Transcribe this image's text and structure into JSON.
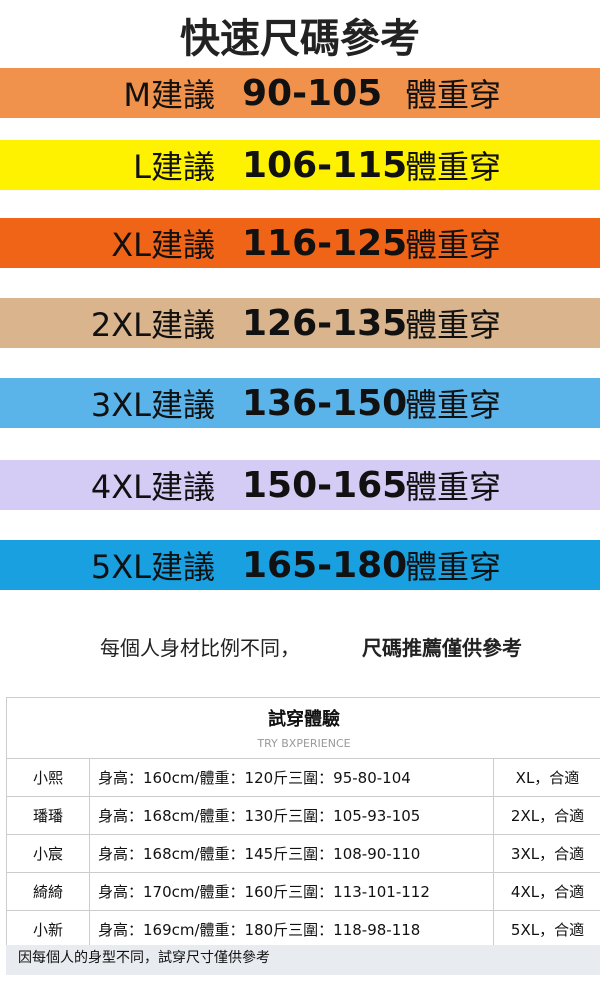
{
  "title": "快速尺碼參考",
  "bands": [
    {
      "label": "M建議",
      "range": "90-105",
      "suffix": "體重穿",
      "color": "#f0914c"
    },
    {
      "label": "L建議",
      "range": "106-115",
      "suffix": "體重穿",
      "color": "#fff200"
    },
    {
      "label": "XL建議",
      "range": "116-125",
      "suffix": "體重穿",
      "color": "#f06418"
    },
    {
      "label": "2XL建議",
      "range": "126-135",
      "suffix": "體重穿",
      "color": "#d9b48c"
    },
    {
      "label": "3XL建議",
      "range": "136-150",
      "suffix": "體重穿",
      "color": "#5ab4ea"
    },
    {
      "label": "4XL建議",
      "range": "150-165",
      "suffix": "體重穿",
      "color": "#d4ccf4"
    },
    {
      "label": "5XL建議",
      "range": "165-180",
      "suffix": "體重穿",
      "color": "#18a0e0"
    }
  ],
  "note_left": "每個人身材比例不同，",
  "note_right": "尺碼推薦僅供參考",
  "table": {
    "title": "試穿體驗",
    "subtitle": "TRY BXPERIENCE",
    "rows": [
      {
        "name": "小熙",
        "info": "身高：160cm/體重：120斤三圍：95-80-104",
        "size": "XL，合適"
      },
      {
        "name": "璠璠",
        "info": "身高：168cm/體重：130斤三圍：105-93-105",
        "size": "2XL，合適"
      },
      {
        "name": "小宸",
        "info": "身高：168cm/體重：145斤三圍：108-90-110",
        "size": "3XL，合適"
      },
      {
        "name": "綺綺",
        "info": "身高：170cm/體重：160斤三圍：113-101-112",
        "size": "4XL，合適"
      },
      {
        "name": "小新",
        "info": "身高：169cm/體重：180斤三圍：118-98-118",
        "size": "5XL，合適"
      }
    ],
    "footer": "因每個人的身型不同，試穿尺寸僅供參考"
  }
}
